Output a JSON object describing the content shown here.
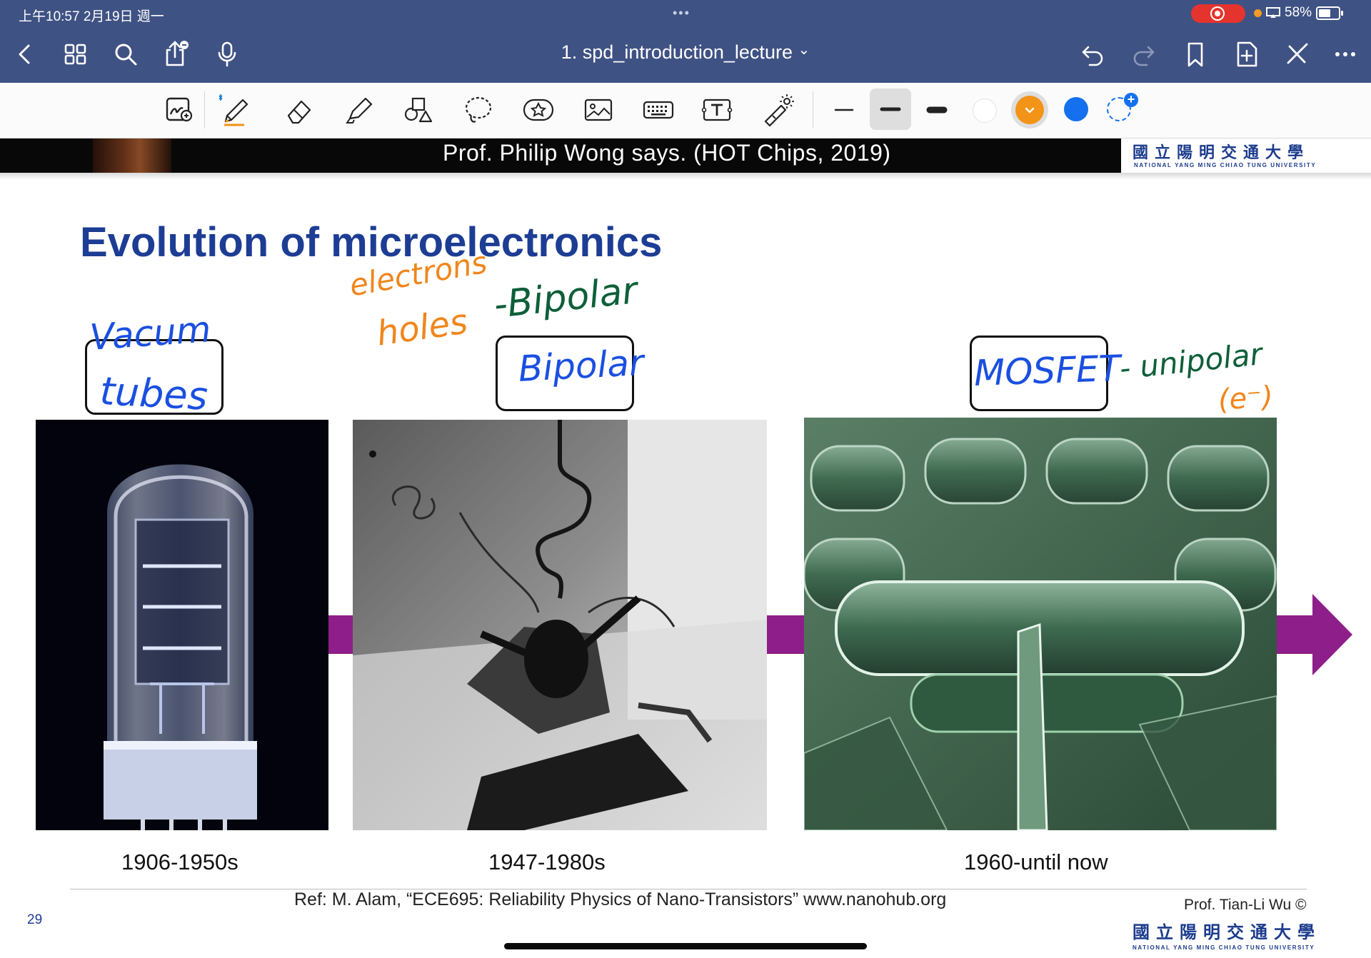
{
  "status_bar": {
    "time_date": "上午10:57   2月19日 週一",
    "dots": "•••",
    "battery": "58%"
  },
  "nav": {
    "title": "1. spd_introduction_lecture",
    "title_chevron": "⌄"
  },
  "toolbar": {
    "tools": [
      "zoom-window",
      "pen",
      "eraser",
      "highlighter",
      "shapes",
      "lasso",
      "stickers",
      "image",
      "keyboard",
      "text-box",
      "laser-pointer"
    ],
    "stroke_widths": [
      "thin",
      "medium",
      "thick"
    ],
    "colors": [
      "#ffffff",
      "#f39317",
      "#1470ee"
    ],
    "selected_color": "#f39317",
    "selected_stroke": "medium"
  },
  "slide": {
    "video_caption": "Prof. Philip Wong says. (HOT Chips, 2019)",
    "title": "Evolution of microelectronics",
    "eras": [
      {
        "label": "1906-1950s"
      },
      {
        "label": "1947-1980s"
      },
      {
        "label": "1960-until now"
      }
    ],
    "reference": "Ref: M. Alam, “ECE695: Reliability Physics of Nano-Transistors” www.nanohub.org",
    "page_number": "29",
    "prof": "Prof. Tian-Li Wu ©",
    "university_chinese": "國立陽明交通大學",
    "university_english": "NATIONAL YANG MING CHIAO TUNG UNIVERSITY"
  },
  "annotations": {
    "vacuum_1": "Vacum",
    "vacuum_2": "tubes",
    "electrons": "electrons",
    "holes": "holes",
    "bipolar_note": "-Bipolar",
    "bipolar_box": "Bipolar",
    "mosfet_box": "MOSFET",
    "unipolar": "- unipolar",
    "electron_paren": "(e⁻)"
  }
}
